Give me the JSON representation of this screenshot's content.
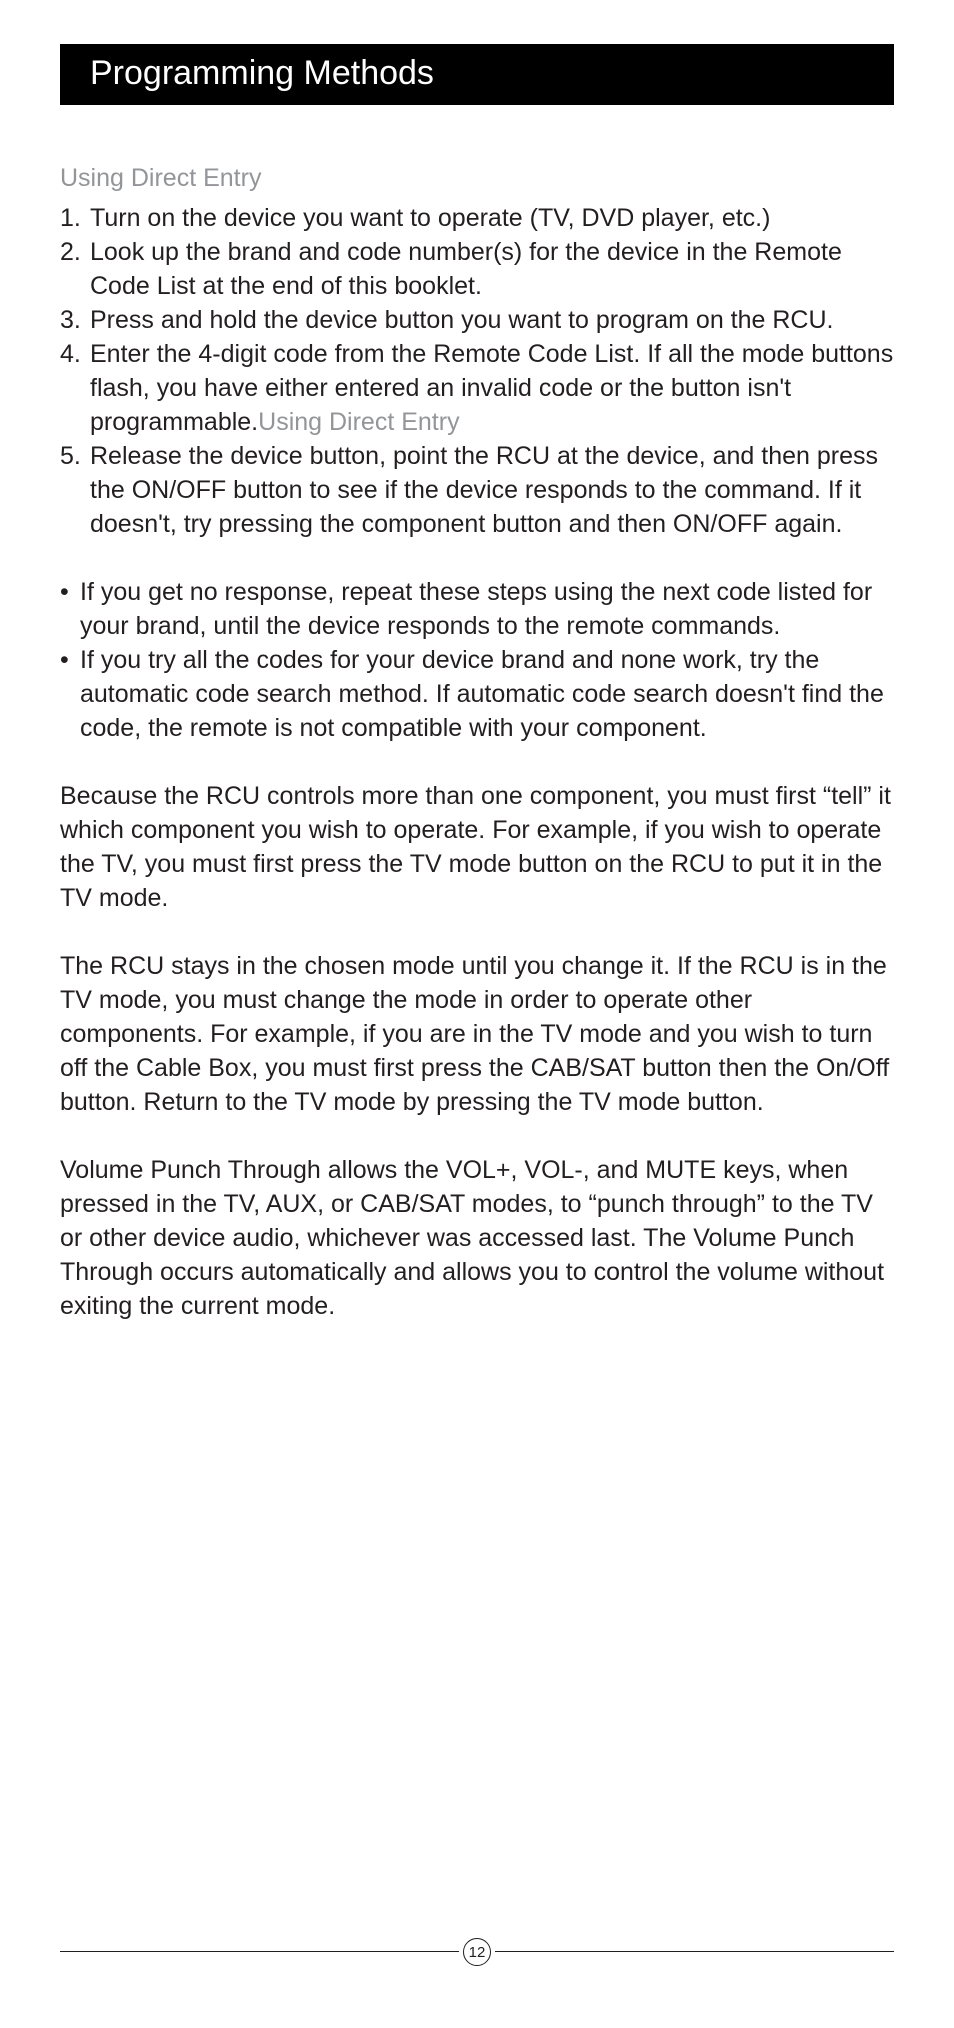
{
  "header": {
    "title": "Programming Methods"
  },
  "subheading": "Using Direct Entry",
  "ordered": [
    {
      "num": "1.",
      "text": "Turn on the device you want to operate (TV, DVD player, etc.)"
    },
    {
      "num": "2.",
      "text": "Look up the brand and code number(s) for the device in the Remote Code List at the end of this booklet."
    },
    {
      "num": "3.",
      "text": "Press and hold the device button you want to program on the RCU."
    },
    {
      "num": "4.",
      "text": "Enter the 4-digit code from the Remote Code List.  If all the mode buttons flash, you have either entered an invalid code or the button isn't programmable.",
      "trailing_gray": "Using Direct Entry"
    },
    {
      "num": "5.",
      "text": "Release the device button, point the RCU at the device, and then press the ON/OFF button to see if the device responds to the command. If it doesn't, try pressing the component button and then ON/OFF again."
    }
  ],
  "bullets": [
    "If you get no response, repeat these steps using the next code listed for your brand, until the device responds to the remote commands.",
    "If you try all the codes for your device brand and none work, try the automatic code search method. If automatic code search doesn't find the code, the remote is not compatible with your component."
  ],
  "paragraphs": [
    "Because the RCU controls more than one component, you must first “tell” it which component you wish to operate.  For example, if you wish to operate the TV, you must first press the TV mode button on the RCU to put it in the TV mode.",
    "The RCU stays in the chosen mode until you change it.  If the RCU is in the TV mode, you must change the mode in order to operate other components.  For example, if you are in the TV mode and you wish to turn off the Cable Box, you must first press the CAB/SAT button then the On/Off button.  Return to the TV mode by pressing the TV mode button.",
    "Volume Punch Through allows the VOL+, VOL-, and MUTE keys, when pressed in the TV, AUX, or CAB/SAT modes, to “punch through” to the TV or other device audio, whichever was accessed last.  The Volume Punch Through occurs automatically and allows you to control the volume without exiting the current mode."
  ],
  "footer": {
    "page_number": "12"
  },
  "colors": {
    "title_bg": "#000000",
    "title_fg": "#ffffff",
    "body_text": "#231f20",
    "gray_text": "#939598",
    "page_bg": "#ffffff"
  },
  "typography": {
    "title_fontsize_pt": 26,
    "body_fontsize_pt": 19,
    "font_family": "Arial"
  }
}
